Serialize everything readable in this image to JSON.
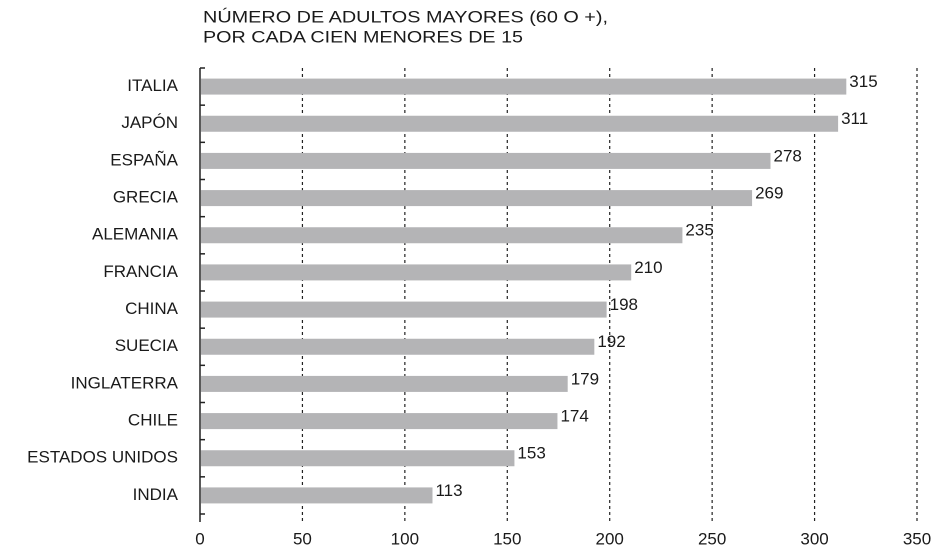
{
  "chart_data": {
    "type": "bar",
    "orientation": "horizontal",
    "title": "NÚMERO DE ADULTOS MAYORES (60 O +),",
    "subtitle": "POR CADA CIEN MENORES DE 15",
    "categories": [
      "ITALIA",
      "JAPÓN",
      "ESPAÑA",
      "GRECIA",
      "ALEMANIA",
      "FRANCIA",
      "CHINA",
      "SUECIA",
      "INGLATERRA",
      "CHILE",
      "ESTADOS UNIDOS",
      "INDIA"
    ],
    "values": [
      315,
      311,
      278,
      269,
      235,
      210,
      198,
      192,
      179,
      174,
      153,
      113
    ],
    "color": "#b4b4b6",
    "xlim": [
      0,
      350
    ],
    "xticks": [
      0,
      50,
      100,
      150,
      200,
      250,
      300,
      350
    ],
    "grid": true
  }
}
